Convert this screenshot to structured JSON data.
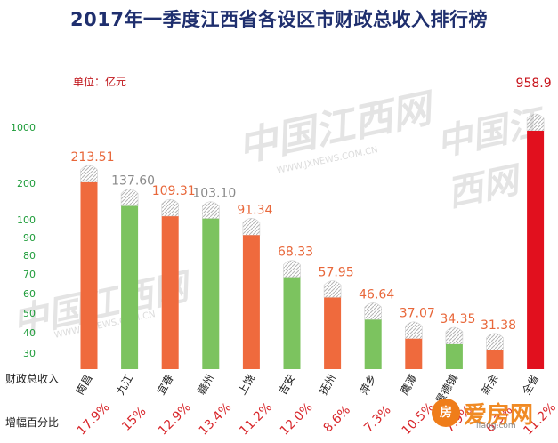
{
  "chart_data": {
    "type": "bar",
    "title": "2017年一季度江西省各设区市财政总收入排行榜",
    "unit_label": "单位：亿元",
    "row_labels": {
      "revenue": "财政总收入",
      "growth": "增幅百分比"
    },
    "y_ticks": [
      "1000",
      "200",
      "100",
      "90",
      "80",
      "70",
      "60",
      "50",
      "40",
      "30"
    ],
    "axis_scale": "broken (non-linear)",
    "categories": [
      "南昌",
      "九江",
      "宜春",
      "赣州",
      "上饶",
      "吉安",
      "抚州",
      "萍乡",
      "鹰潭",
      "景德镇",
      "新余",
      "全省"
    ],
    "values": [
      213.51,
      137.6,
      109.31,
      103.1,
      91.34,
      68.33,
      57.95,
      46.64,
      37.07,
      34.35,
      31.38,
      958.9
    ],
    "value_labels": [
      "213.51",
      "137.60",
      "109.31",
      "103.10",
      "91.34",
      "68.33",
      "57.95",
      "46.64",
      "37.07",
      "34.35",
      "31.38",
      "958.9"
    ],
    "growth": [
      "17.9%",
      "15%",
      "12.9%",
      "13.4%",
      "11.2%",
      "12.0%",
      "8.6%",
      "7.3%",
      "10.5%",
      "7.9%",
      "6.3%",
      "11.2%"
    ],
    "colors": [
      "#ef6a3d",
      "#7cc35f",
      "#ef6a3d",
      "#7cc35f",
      "#ef6a3d",
      "#7cc35f",
      "#ef6a3d",
      "#7cc35f",
      "#ef6a3d",
      "#7cc35f",
      "#ef6a3d",
      "#e1101e"
    ],
    "label_colors": [
      "#e8673a",
      "#8a8a8a",
      "#e8673a",
      "#8a8a8a",
      "#e8673a",
      "#e8673a",
      "#e8673a",
      "#e8673a",
      "#e8673a",
      "#e8673a",
      "#e8673a",
      "#c8141c"
    ],
    "tick_color": "#1e9c3a",
    "growth_color": "#d8262b"
  },
  "watermark": {
    "text": "中国江西网",
    "url": "WWW.JXNEWS.COM.CN"
  },
  "logo": {
    "mark": "房",
    "name": "爱房网",
    "url": "ifang.com"
  }
}
